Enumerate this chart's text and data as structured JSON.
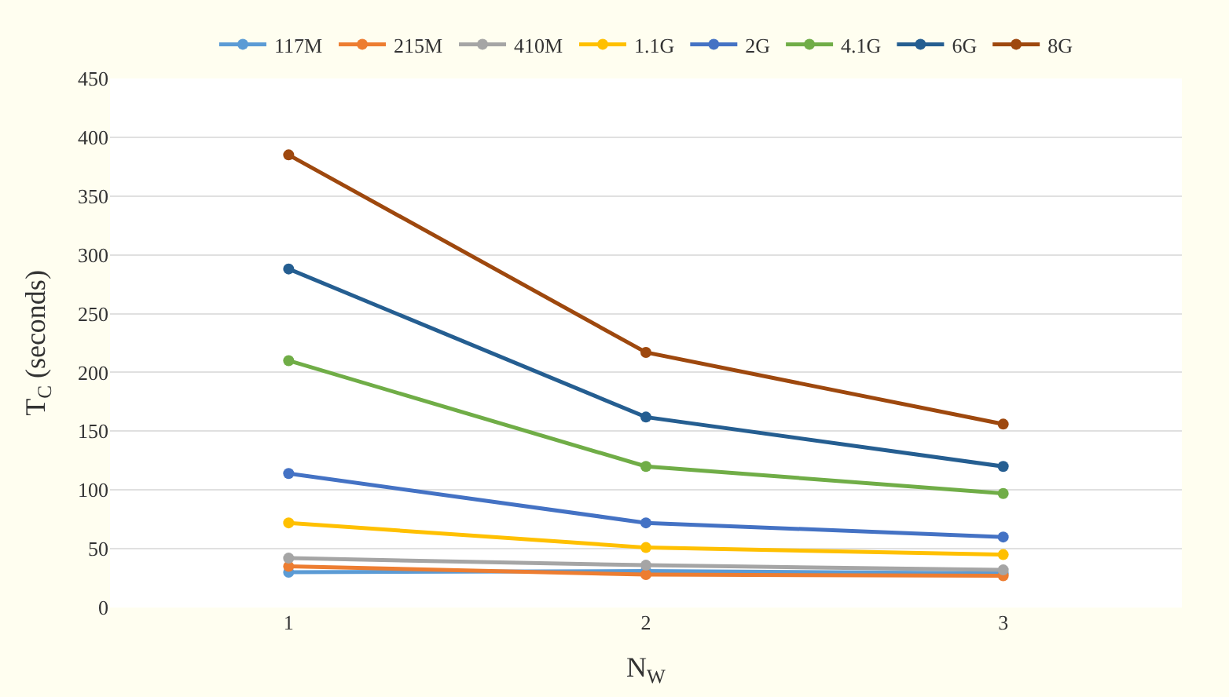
{
  "chart_data": {
    "type": "line",
    "categories": [
      "1",
      "2",
      "3"
    ],
    "xlabel": "N$_{W}$",
    "ylabel": "T$_{C}$ (seconds)",
    "ylim": [
      0,
      450
    ],
    "yticks": [
      0,
      50,
      100,
      150,
      200,
      250,
      300,
      350,
      400,
      450
    ],
    "grid": "y",
    "legend": "top",
    "marker": "circle",
    "line_style": "solid",
    "series": [
      {
        "name": "117M",
        "color": "#5b9bd5",
        "values": [
          30,
          31,
          29
        ]
      },
      {
        "name": "215M",
        "color": "#ed7d31",
        "values": [
          35,
          28,
          27
        ]
      },
      {
        "name": "410M",
        "color": "#a5a5a5",
        "values": [
          42,
          36,
          32
        ]
      },
      {
        "name": "1.1G",
        "color": "#ffc000",
        "values": [
          72,
          51,
          45
        ]
      },
      {
        "name": "2G",
        "color": "#4472c4",
        "values": [
          114,
          72,
          60
        ]
      },
      {
        "name": "4.1G",
        "color": "#70ad47",
        "values": [
          210,
          120,
          97
        ]
      },
      {
        "name": "6G",
        "color": "#255e91",
        "values": [
          288,
          162,
          120
        ]
      },
      {
        "name": "8G",
        "color": "#9e480e",
        "values": [
          385,
          217,
          156
        ]
      }
    ]
  }
}
